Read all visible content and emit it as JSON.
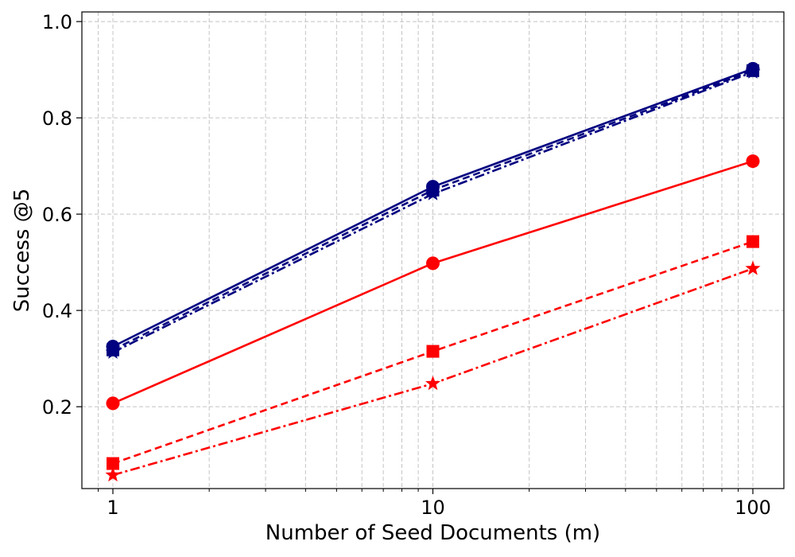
{
  "chart_data": {
    "type": "line",
    "title": "",
    "xlabel": "Number of Seed Documents (m)",
    "ylabel": "Success @5",
    "x_scale": "log",
    "x": [
      1,
      10,
      100
    ],
    "x_ticks": [
      1,
      10,
      100
    ],
    "x_tick_labels": [
      "1",
      "10",
      "100"
    ],
    "xlim": [
      0.8,
      125
    ],
    "y_ticks": [
      0.2,
      0.4,
      0.6,
      0.8,
      1.0
    ],
    "y_tick_labels": [
      "0.2",
      "0.4",
      "0.6",
      "0.8",
      "1.0"
    ],
    "ylim": [
      0.03,
      1.02
    ],
    "grid": true,
    "legend": "none",
    "series": [
      {
        "color": "#000080",
        "line_style": "solid",
        "marker": "circle",
        "values": [
          0.325,
          0.657,
          0.902
        ]
      },
      {
        "color": "#000080",
        "line_style": "dashed",
        "marker": "square",
        "values": [
          0.318,
          0.65,
          0.898
        ]
      },
      {
        "color": "#000080",
        "line_style": "dashdot",
        "marker": "star",
        "values": [
          0.313,
          0.642,
          0.895
        ]
      },
      {
        "color": "#ff0000",
        "line_style": "solid",
        "marker": "circle",
        "values": [
          0.207,
          0.498,
          0.71
        ]
      },
      {
        "color": "#ff0000",
        "line_style": "dashed",
        "marker": "square",
        "values": [
          0.082,
          0.315,
          0.543
        ]
      },
      {
        "color": "#ff0000",
        "line_style": "dashdot",
        "marker": "star",
        "values": [
          0.058,
          0.248,
          0.487
        ]
      }
    ]
  }
}
